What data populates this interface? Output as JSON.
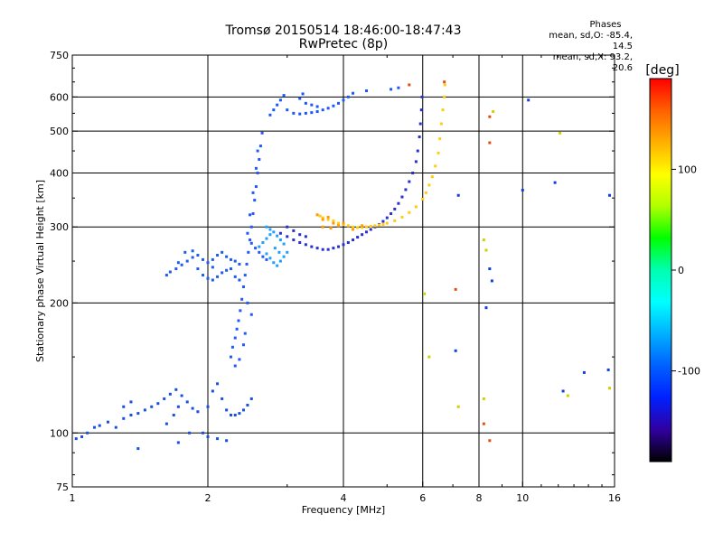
{
  "header": {
    "title_line1": "Tromsø 20150514 18:46:00-18:47:43",
    "title_line2": "RwPretec (8p)"
  },
  "phases_box": {
    "heading": "Phases",
    "line_o": "mean, sd,O: -85.4, 14.5",
    "line_x": "mean, sd,X:  93.2, 20.6"
  },
  "colorbar": {
    "label": "[deg]",
    "ticks": [
      {
        "value": 100,
        "label": "100"
      },
      {
        "value": 0,
        "label": "0"
      },
      {
        "value": -100,
        "label": "-100"
      }
    ],
    "range": [
      -190,
      190
    ],
    "colors_top_to_bottom": [
      "#ff0000",
      "#ff6000",
      "#ffb000",
      "#ffff00",
      "#b0ff00",
      "#00ff00",
      "#00ffb0",
      "#00ffff",
      "#00b0ff",
      "#0060ff",
      "#0020ff",
      "#3000a0",
      "#000000"
    ]
  },
  "chart_data": {
    "type": "scatter",
    "xlabel": "Frequency [MHz]",
    "ylabel": "Stationary phase Virtual Height [km]",
    "xscale": "log",
    "yscale": "log",
    "xlim": [
      1,
      16
    ],
    "ylim": [
      75,
      750
    ],
    "xticks": [
      {
        "value": 1,
        "label": "1"
      },
      {
        "value": 2,
        "label": "2"
      },
      {
        "value": 4,
        "label": "4"
      },
      {
        "value": 6,
        "label": "6"
      },
      {
        "value": 8,
        "label": "8"
      },
      {
        "value": 10,
        "label": "10"
      },
      {
        "value": 16,
        "label": "16"
      }
    ],
    "yticks": [
      {
        "value": 75,
        "label": "75"
      },
      {
        "value": 100,
        "label": "100"
      },
      {
        "value": 200,
        "label": "200"
      },
      {
        "value": 300,
        "label": "300"
      },
      {
        "value": 400,
        "label": "400"
      },
      {
        "value": 500,
        "label": "500"
      },
      {
        "value": 600,
        "label": "600"
      },
      {
        "value": 750,
        "label": "750"
      }
    ],
    "grid_x": [
      2,
      4,
      6,
      8,
      10
    ],
    "grid_y": [
      100,
      200,
      300,
      400,
      500,
      600
    ],
    "point_groups": [
      {
        "name": "low-E",
        "color": "#1a50e0",
        "points": [
          [
            1.02,
            97
          ],
          [
            1.05,
            98
          ],
          [
            1.08,
            100
          ],
          [
            1.12,
            103
          ],
          [
            1.15,
            104
          ],
          [
            1.2,
            106
          ],
          [
            1.25,
            103
          ],
          [
            1.3,
            108
          ],
          [
            1.35,
            110
          ],
          [
            1.4,
            111
          ],
          [
            1.45,
            113
          ],
          [
            1.5,
            115
          ],
          [
            1.55,
            117
          ],
          [
            1.6,
            120
          ],
          [
            1.65,
            123
          ],
          [
            1.7,
            126
          ],
          [
            1.75,
            122
          ],
          [
            1.8,
            118
          ],
          [
            1.85,
            114
          ],
          [
            1.9,
            112
          ],
          [
            2.0,
            115
          ],
          [
            2.05,
            125
          ],
          [
            2.1,
            130
          ],
          [
            2.15,
            120
          ],
          [
            2.2,
            113
          ],
          [
            2.25,
            110
          ],
          [
            2.3,
            110
          ],
          [
            2.35,
            111
          ],
          [
            2.4,
            113
          ],
          [
            2.45,
            116
          ],
          [
            2.5,
            120
          ],
          [
            1.3,
            115
          ],
          [
            1.35,
            118
          ],
          [
            1.62,
            105
          ],
          [
            1.68,
            110
          ],
          [
            1.72,
            115
          ],
          [
            1.82,
            100
          ],
          [
            1.95,
            100
          ],
          [
            2.0,
            98
          ],
          [
            2.1,
            97
          ],
          [
            2.2,
            96
          ],
          [
            1.4,
            92
          ],
          [
            1.72,
            95
          ]
        ]
      },
      {
        "name": "Es-trace",
        "color": "#1e5cf0",
        "points": [
          [
            1.62,
            232
          ],
          [
            1.65,
            236
          ],
          [
            1.7,
            240
          ],
          [
            1.75,
            245
          ],
          [
            1.8,
            250
          ],
          [
            1.85,
            255
          ],
          [
            1.9,
            258
          ],
          [
            1.95,
            252
          ],
          [
            2.0,
            248
          ],
          [
            2.05,
            252
          ],
          [
            2.1,
            258
          ],
          [
            2.15,
            262
          ],
          [
            2.2,
            256
          ],
          [
            2.25,
            252
          ],
          [
            2.3,
            250
          ],
          [
            2.35,
            246
          ],
          [
            1.9,
            240
          ],
          [
            1.95,
            232
          ],
          [
            2.0,
            228
          ],
          [
            2.05,
            226
          ],
          [
            2.1,
            230
          ],
          [
            2.15,
            235
          ],
          [
            2.2,
            238
          ],
          [
            2.25,
            240
          ],
          [
            1.72,
            248
          ],
          [
            1.78,
            262
          ],
          [
            1.85,
            264
          ],
          [
            2.05,
            242
          ],
          [
            2.3,
            230
          ],
          [
            2.35,
            226
          ]
        ]
      },
      {
        "name": "vertical-spread",
        "color": "#2258ff",
        "points": [
          [
            2.25,
            150
          ],
          [
            2.27,
            158
          ],
          [
            2.3,
            166
          ],
          [
            2.32,
            174
          ],
          [
            2.34,
            182
          ],
          [
            2.36,
            192
          ],
          [
            2.38,
            204
          ],
          [
            2.4,
            218
          ],
          [
            2.42,
            232
          ],
          [
            2.44,
            246
          ],
          [
            2.46,
            262
          ],
          [
            2.48,
            280
          ],
          [
            2.5,
            300
          ],
          [
            2.52,
            322
          ],
          [
            2.54,
            346
          ],
          [
            2.56,
            372
          ],
          [
            2.58,
            400
          ],
          [
            2.6,
            430
          ],
          [
            2.62,
            462
          ],
          [
            2.64,
            495
          ],
          [
            2.45,
            290
          ],
          [
            2.5,
            275
          ],
          [
            2.55,
            268
          ],
          [
            2.6,
            262
          ],
          [
            2.65,
            256
          ],
          [
            2.7,
            252
          ],
          [
            2.48,
            320
          ],
          [
            2.52,
            360
          ],
          [
            2.56,
            410
          ],
          [
            2.58,
            450
          ],
          [
            2.45,
            200
          ],
          [
            2.5,
            188
          ],
          [
            2.42,
            170
          ],
          [
            2.4,
            160
          ],
          [
            2.35,
            148
          ],
          [
            2.3,
            143
          ]
        ]
      },
      {
        "name": "F-region-cyan",
        "color": "#1ea0ff",
        "points": [
          [
            2.6,
            270
          ],
          [
            2.65,
            276
          ],
          [
            2.7,
            282
          ],
          [
            2.75,
            288
          ],
          [
            2.8,
            292
          ],
          [
            2.85,
            286
          ],
          [
            2.9,
            280
          ],
          [
            2.95,
            274
          ],
          [
            2.7,
            260
          ],
          [
            2.75,
            254
          ],
          [
            2.8,
            248
          ],
          [
            2.85,
            244
          ],
          [
            2.9,
            250
          ],
          [
            2.95,
            256
          ],
          [
            3.0,
            262
          ],
          [
            2.7,
            300
          ],
          [
            2.75,
            296
          ],
          [
            2.82,
            268
          ],
          [
            2.88,
            262
          ]
        ]
      },
      {
        "name": "O-trace",
        "color": "#2830d0",
        "points": [
          [
            2.9,
            290
          ],
          [
            3.0,
            285
          ],
          [
            3.1,
            280
          ],
          [
            3.2,
            276
          ],
          [
            3.3,
            273
          ],
          [
            3.4,
            270
          ],
          [
            3.5,
            268
          ],
          [
            3.6,
            266
          ],
          [
            3.7,
            266
          ],
          [
            3.8,
            268
          ],
          [
            3.9,
            270
          ],
          [
            4.0,
            273
          ],
          [
            4.1,
            276
          ],
          [
            4.2,
            280
          ],
          [
            4.3,
            284
          ],
          [
            4.4,
            288
          ],
          [
            4.5,
            292
          ],
          [
            4.6,
            296
          ],
          [
            4.7,
            300
          ],
          [
            4.8,
            304
          ],
          [
            4.9,
            309
          ],
          [
            5.0,
            315
          ],
          [
            5.1,
            322
          ],
          [
            5.2,
            330
          ],
          [
            5.3,
            340
          ],
          [
            5.4,
            352
          ],
          [
            5.5,
            366
          ],
          [
            5.6,
            382
          ],
          [
            5.7,
            400
          ],
          [
            5.8,
            425
          ],
          [
            5.85,
            450
          ],
          [
            5.9,
            485
          ],
          [
            5.93,
            520
          ],
          [
            5.96,
            560
          ],
          [
            5.98,
            600
          ],
          [
            3.0,
            300
          ],
          [
            3.1,
            294
          ],
          [
            3.2,
            288
          ],
          [
            3.3,
            285
          ]
        ]
      },
      {
        "name": "top-echo",
        "color": "#1a58ff",
        "points": [
          [
            2.75,
            545
          ],
          [
            2.8,
            560
          ],
          [
            2.85,
            575
          ],
          [
            2.9,
            590
          ],
          [
            2.95,
            605
          ],
          [
            3.0,
            560
          ],
          [
            3.1,
            550
          ],
          [
            3.2,
            548
          ],
          [
            3.3,
            550
          ],
          [
            3.4,
            552
          ],
          [
            3.5,
            555
          ],
          [
            3.6,
            560
          ],
          [
            3.7,
            565
          ],
          [
            3.8,
            572
          ],
          [
            3.9,
            580
          ],
          [
            4.0,
            590
          ],
          [
            4.1,
            600
          ],
          [
            4.2,
            612
          ],
          [
            4.5,
            620
          ],
          [
            5.1,
            625
          ],
          [
            5.3,
            630
          ],
          [
            3.2,
            595
          ],
          [
            3.25,
            610
          ],
          [
            3.3,
            580
          ],
          [
            3.4,
            575
          ],
          [
            3.5,
            570
          ]
        ]
      },
      {
        "name": "X-trace",
        "color": "#ffcc10",
        "points": [
          [
            3.55,
            318
          ],
          [
            3.6,
            315
          ],
          [
            3.7,
            312
          ],
          [
            3.8,
            310
          ],
          [
            3.9,
            306
          ],
          [
            4.0,
            304
          ],
          [
            4.1,
            302
          ],
          [
            4.2,
            300
          ],
          [
            4.3,
            299
          ],
          [
            4.4,
            299
          ],
          [
            4.5,
            300
          ],
          [
            4.6,
            301
          ],
          [
            4.7,
            302
          ],
          [
            4.8,
            303
          ],
          [
            4.9,
            304
          ],
          [
            5.0,
            306
          ],
          [
            5.2,
            310
          ],
          [
            5.4,
            316
          ],
          [
            5.6,
            324
          ],
          [
            5.8,
            334
          ],
          [
            6.0,
            348
          ],
          [
            6.1,
            360
          ],
          [
            6.2,
            375
          ],
          [
            6.3,
            392
          ],
          [
            6.4,
            415
          ],
          [
            6.5,
            445
          ],
          [
            6.55,
            480
          ],
          [
            6.6,
            520
          ],
          [
            6.65,
            560
          ],
          [
            6.7,
            600
          ],
          [
            6.72,
            640
          ]
        ]
      },
      {
        "name": "X-trace-orange",
        "color": "#ff9a00",
        "points": [
          [
            3.5,
            320
          ],
          [
            3.6,
            312
          ],
          [
            3.7,
            316
          ],
          [
            3.8,
            306
          ],
          [
            3.9,
            302
          ],
          [
            4.0,
            306
          ],
          [
            4.2,
            296
          ],
          [
            4.4,
            302
          ],
          [
            3.6,
            300
          ],
          [
            3.75,
            298
          ]
        ]
      },
      {
        "name": "scattered",
        "color": "#e05010",
        "points": [
          [
            5.6,
            640
          ],
          [
            6.7,
            650
          ],
          [
            7.1,
            215
          ],
          [
            8.2,
            105
          ],
          [
            8.45,
            96
          ],
          [
            8.45,
            470
          ],
          [
            8.45,
            540
          ]
        ]
      },
      {
        "name": "scattered-blue",
        "color": "#1040e0",
        "points": [
          [
            7.1,
            155
          ],
          [
            8.45,
            240
          ],
          [
            8.55,
            225
          ],
          [
            8.3,
            195
          ],
          [
            7.2,
            355
          ],
          [
            10.0,
            365
          ],
          [
            11.8,
            380
          ],
          [
            13.7,
            138
          ],
          [
            15.5,
            140
          ],
          [
            15.6,
            355
          ],
          [
            10.3,
            590
          ],
          [
            12.3,
            125
          ]
        ]
      },
      {
        "name": "scattered-yellow",
        "color": "#d0d000",
        "points": [
          [
            6.05,
            210
          ],
          [
            6.2,
            150
          ],
          [
            7.2,
            115
          ],
          [
            8.2,
            120
          ],
          [
            8.2,
            280
          ],
          [
            8.3,
            265
          ],
          [
            8.6,
            555
          ],
          [
            12.1,
            495
          ],
          [
            12.6,
            122
          ],
          [
            15.6,
            127
          ]
        ]
      }
    ]
  }
}
